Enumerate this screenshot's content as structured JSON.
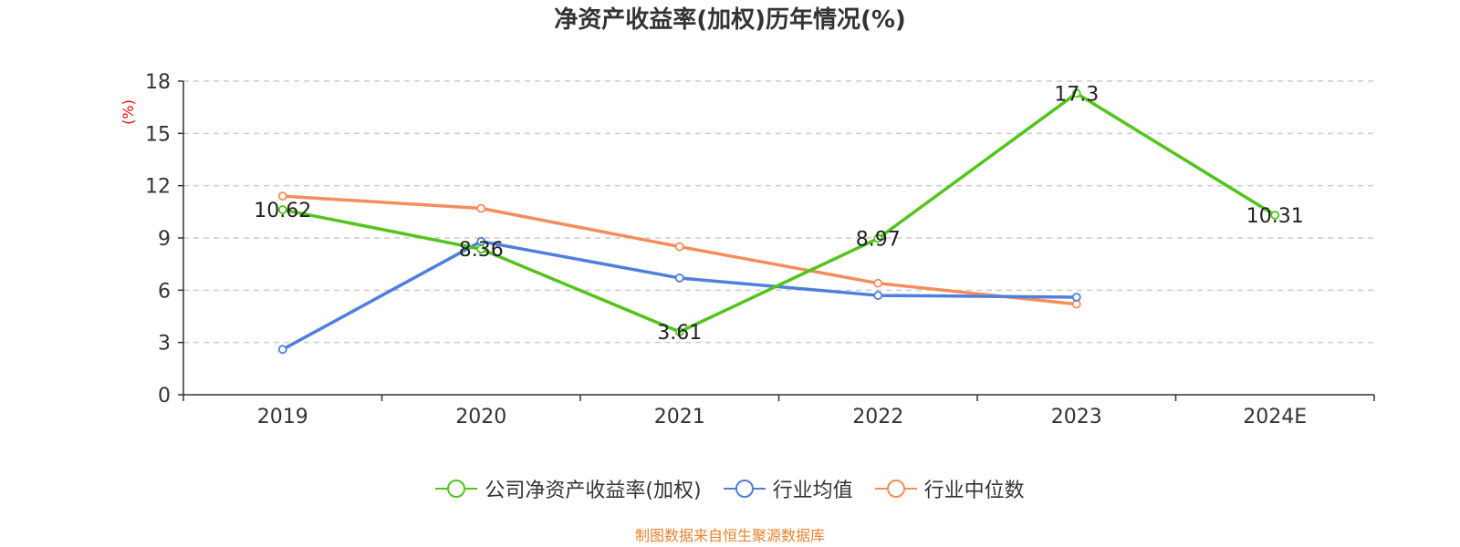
{
  "chart_data": {
    "type": "line",
    "title": "净资产收益率(加权)历年情况(%)",
    "ylabel": "(%)",
    "categories": [
      "2019",
      "2020",
      "2021",
      "2022",
      "2023",
      "2024E"
    ],
    "ylim": [
      0,
      18
    ],
    "yticks": [
      "0",
      "3",
      "6",
      "9",
      "12",
      "15",
      "18"
    ],
    "grid": true,
    "legend_position": "bottom",
    "series": [
      {
        "name": "公司净资产收益率(加权)",
        "color": "#52c41a",
        "values": [
          10.62,
          8.36,
          3.61,
          8.97,
          17.3,
          10.31
        ],
        "labels": [
          "10.62",
          "8.36",
          "3.61",
          "8.97",
          "17.3",
          "10.31"
        ]
      },
      {
        "name": "行业均值",
        "color": "#4e7fdc",
        "values": [
          2.6,
          8.8,
          6.7,
          5.7,
          5.6,
          null
        ]
      },
      {
        "name": "行业中位数",
        "color": "#f58d5b",
        "values": [
          11.4,
          10.7,
          8.5,
          6.4,
          5.2,
          null
        ]
      }
    ],
    "source": "制图数据来自恒生聚源数据库"
  }
}
